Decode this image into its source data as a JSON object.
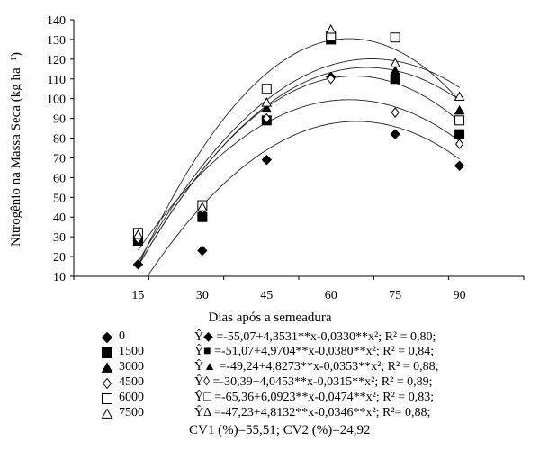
{
  "chart_data": {
    "type": "scatter",
    "title": "",
    "xlabel": "Dias após a semeadura",
    "ylabel": "Nitrogênio na Massa Seca  (kg ha⁻¹)",
    "x": [
      15,
      30,
      45,
      60,
      75,
      90
    ],
    "xlim": [
      0,
      105
    ],
    "ylim": [
      10,
      140
    ],
    "yticks": [
      10,
      20,
      30,
      40,
      50,
      60,
      70,
      80,
      90,
      100,
      110,
      120,
      130,
      140
    ],
    "xticks": [
      15,
      30,
      45,
      60,
      75,
      90
    ],
    "grid": false,
    "legend_position": "below",
    "series": [
      {
        "name": "0",
        "marker": "diamond-filled",
        "values": [
          16,
          23,
          69,
          111,
          82,
          66
        ],
        "coef": [
          -55.07,
          4.3531,
          -0.033
        ],
        "equation": "Ŷ◆ =-55,07+4,3531**x-0,0330**x²; R² = 0,80;"
      },
      {
        "name": "1500",
        "marker": "square-filled",
        "values": [
          28,
          40,
          89,
          130,
          110,
          82
        ],
        "coef": [
          -51.07,
          4.9704,
          -0.038
        ],
        "equation": "Ŷ■ =-51,07+4,9704**x-0,0380**x²; R² = 0,84;"
      },
      {
        "name": "3000",
        "marker": "triangle-filled",
        "values": [
          30,
          43,
          95,
          132,
          114,
          94
        ],
        "coef": [
          -49.24,
          4.8273,
          -0.0353
        ],
        "equation": "Ŷ▲ =-49,24+4,8273**x-0,0353**x²; R² = 0,88;"
      },
      {
        "name": "4500",
        "marker": "diamond-open",
        "values": [
          29,
          44,
          90,
          110,
          93,
          77
        ],
        "coef": [
          -30.39,
          4.0453,
          -0.0315
        ],
        "equation": "Ŷ◊ =-30,39+4,0453**x-0,0315**x²; R² = 0,89;"
      },
      {
        "name": "6000",
        "marker": "square-open",
        "values": [
          32,
          46,
          105,
          132,
          131,
          89
        ],
        "coef": [
          -65.36,
          6.0923,
          -0.0474
        ],
        "equation": "Ŷ□ =-65,36+6,0923**x-0,0474**x²; R² = 0,83;"
      },
      {
        "name": "7500",
        "marker": "triangle-open",
        "values": [
          31,
          45,
          98,
          135,
          118,
          101
        ],
        "coef": [
          -47.23,
          4.8132,
          -0.0346
        ],
        "equation": "ŶΔ =-47,23+4,8132**x-0,0346**x²; R²= 0,88;"
      }
    ],
    "footer": "CV1 (%)=55,51; CV2 (%)=24,92"
  }
}
